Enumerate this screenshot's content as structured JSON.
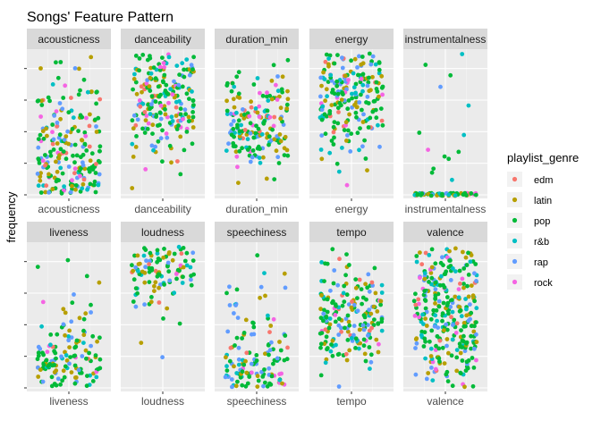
{
  "chart_data": {
    "type": "scatter",
    "title": "Songs' Feature Pattern",
    "ylabel": "frequency",
    "legend": {
      "title": "playlist_genre",
      "placement": "right",
      "entries": [
        {
          "name": "edm",
          "color": "#F8766D"
        },
        {
          "name": "latin",
          "color": "#B79F00"
        },
        {
          "name": "pop",
          "color": "#00BA38"
        },
        {
          "name": "r&b",
          "color": "#00BFC4"
        },
        {
          "name": "rap",
          "color": "#619CFF"
        },
        {
          "name": "rock",
          "color": "#F564E3"
        }
      ]
    },
    "grid": true,
    "facets": [
      {
        "name": "acousticness",
        "xlabel": "acousticness",
        "density": [
          0.98,
          0.92,
          0.82,
          0.7,
          0.55,
          0.42,
          0.32,
          0.22,
          0.12,
          0.06
        ]
      },
      {
        "name": "danceability",
        "xlabel": "danceability",
        "density": [
          0.02,
          0.05,
          0.12,
          0.25,
          0.55,
          0.85,
          0.95,
          0.9,
          0.75,
          0.5
        ]
      },
      {
        "name": "duration_min",
        "xlabel": "duration_min",
        "density": [
          0.03,
          0.08,
          0.3,
          0.8,
          1.0,
          0.9,
          0.55,
          0.35,
          0.15,
          0.05
        ]
      },
      {
        "name": "energy",
        "xlabel": "energy",
        "density": [
          0.02,
          0.04,
          0.1,
          0.25,
          0.45,
          0.7,
          0.9,
          1.0,
          0.85,
          0.65
        ]
      },
      {
        "name": "instrumentalness",
        "xlabel": "instrumentalness",
        "density": [
          1.0,
          0.04,
          0.02,
          0.02,
          0.01,
          0.01,
          0.01,
          0.01,
          0.02,
          0.03
        ]
      },
      {
        "name": "liveness",
        "xlabel": "liveness",
        "density": [
          0.6,
          1.0,
          0.75,
          0.4,
          0.2,
          0.12,
          0.07,
          0.05,
          0.03,
          0.02
        ]
      },
      {
        "name": "loudness",
        "xlabel": "loudness",
        "density": [
          0.01,
          0.01,
          0.02,
          0.03,
          0.05,
          0.1,
          0.22,
          0.55,
          1.0,
          0.6
        ]
      },
      {
        "name": "speechiness",
        "xlabel": "speechiness",
        "density": [
          1.0,
          0.75,
          0.45,
          0.3,
          0.2,
          0.15,
          0.1,
          0.07,
          0.05,
          0.03
        ]
      },
      {
        "name": "tempo",
        "xlabel": "tempo",
        "density": [
          0.05,
          0.15,
          0.45,
          0.8,
          1.0,
          0.85,
          0.6,
          0.4,
          0.2,
          0.08
        ]
      },
      {
        "name": "valence",
        "xlabel": "valence",
        "density": [
          0.3,
          0.5,
          0.7,
          0.85,
          0.95,
          1.0,
          0.9,
          0.8,
          0.65,
          0.45
        ]
      }
    ]
  }
}
